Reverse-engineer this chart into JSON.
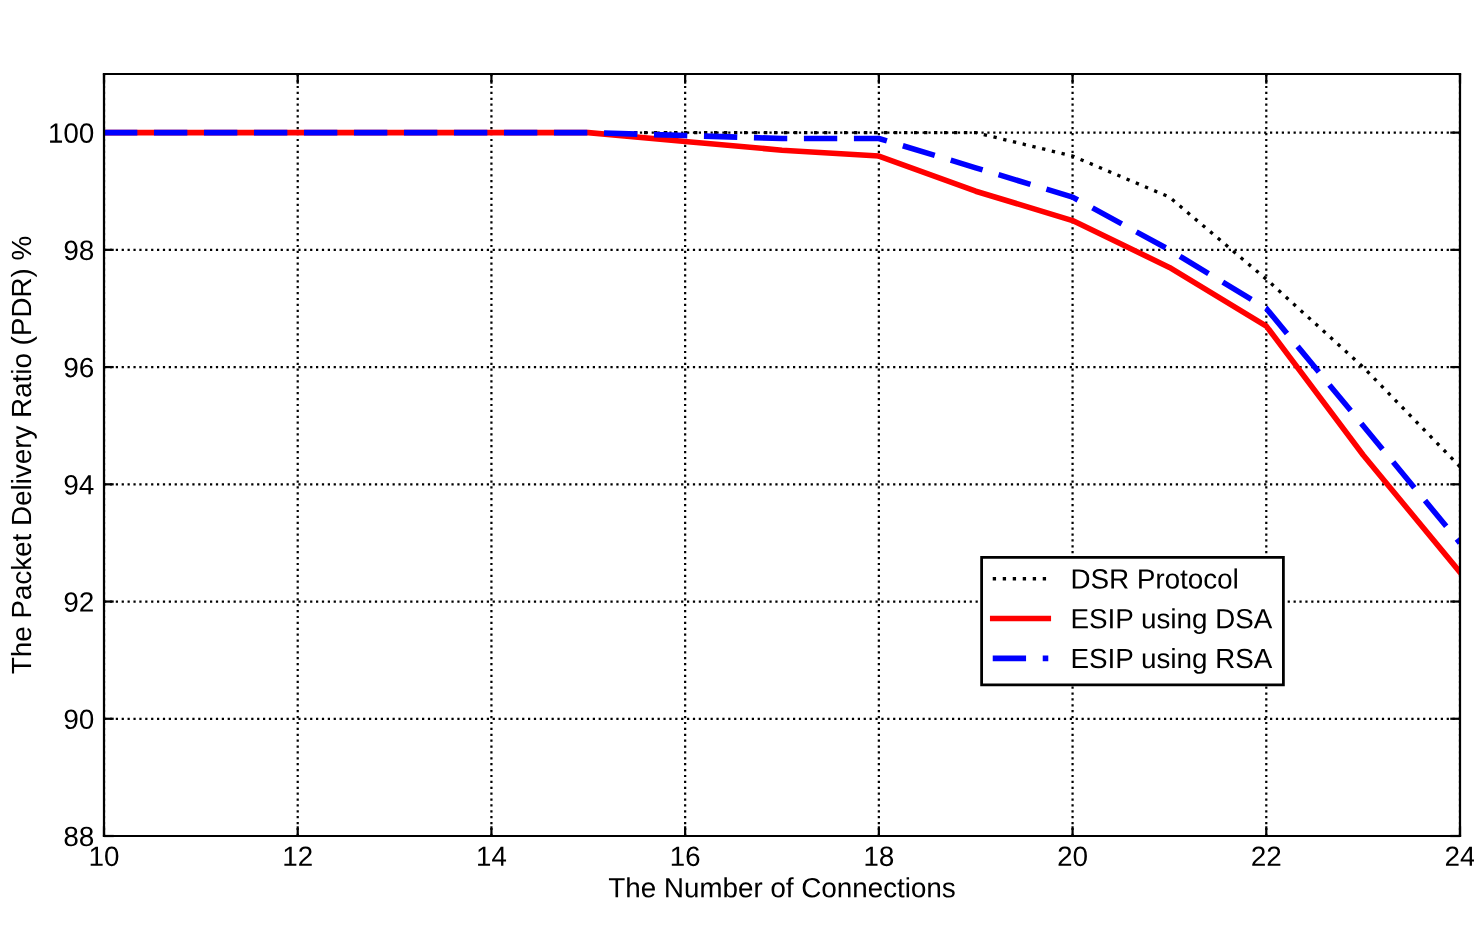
{
  "chart_data": {
    "type": "line",
    "xlabel": "The Number of Connections",
    "ylabel": "The Packet Delivery Ratio (PDR) %",
    "x": [
      10,
      11,
      12,
      13,
      14,
      15,
      16,
      17,
      18,
      19,
      20,
      21,
      22,
      23,
      24
    ],
    "series": [
      {
        "name": "DSR Protocol",
        "color": "#000000",
        "line_style": "dotted",
        "values": [
          100,
          100,
          100,
          100,
          100,
          100,
          100,
          100,
          100,
          100,
          99.6,
          98.9,
          97.5,
          96.0,
          94.3
        ]
      },
      {
        "name": "ESIP using DSA",
        "color": "#ff0000",
        "line_style": "solid",
        "values": [
          100,
          100,
          100,
          100,
          100,
          100,
          99.85,
          99.7,
          99.6,
          99.0,
          98.5,
          97.7,
          96.7,
          94.5,
          92.5
        ]
      },
      {
        "name": "ESIP using RSA",
        "color": "#0000ff",
        "line_style": "dashed",
        "values": [
          100,
          100,
          100,
          100,
          100,
          100,
          99.95,
          99.9,
          99.9,
          99.4,
          98.9,
          98.0,
          97.0,
          95.0,
          93.0
        ]
      }
    ],
    "xlim": [
      10,
      24
    ],
    "ylim": [
      88,
      101
    ],
    "xticks": [
      10,
      12,
      14,
      16,
      18,
      20,
      22,
      24
    ],
    "yticks": [
      88,
      90,
      92,
      94,
      96,
      98,
      100
    ],
    "grid": true,
    "legend": "bottom right"
  }
}
